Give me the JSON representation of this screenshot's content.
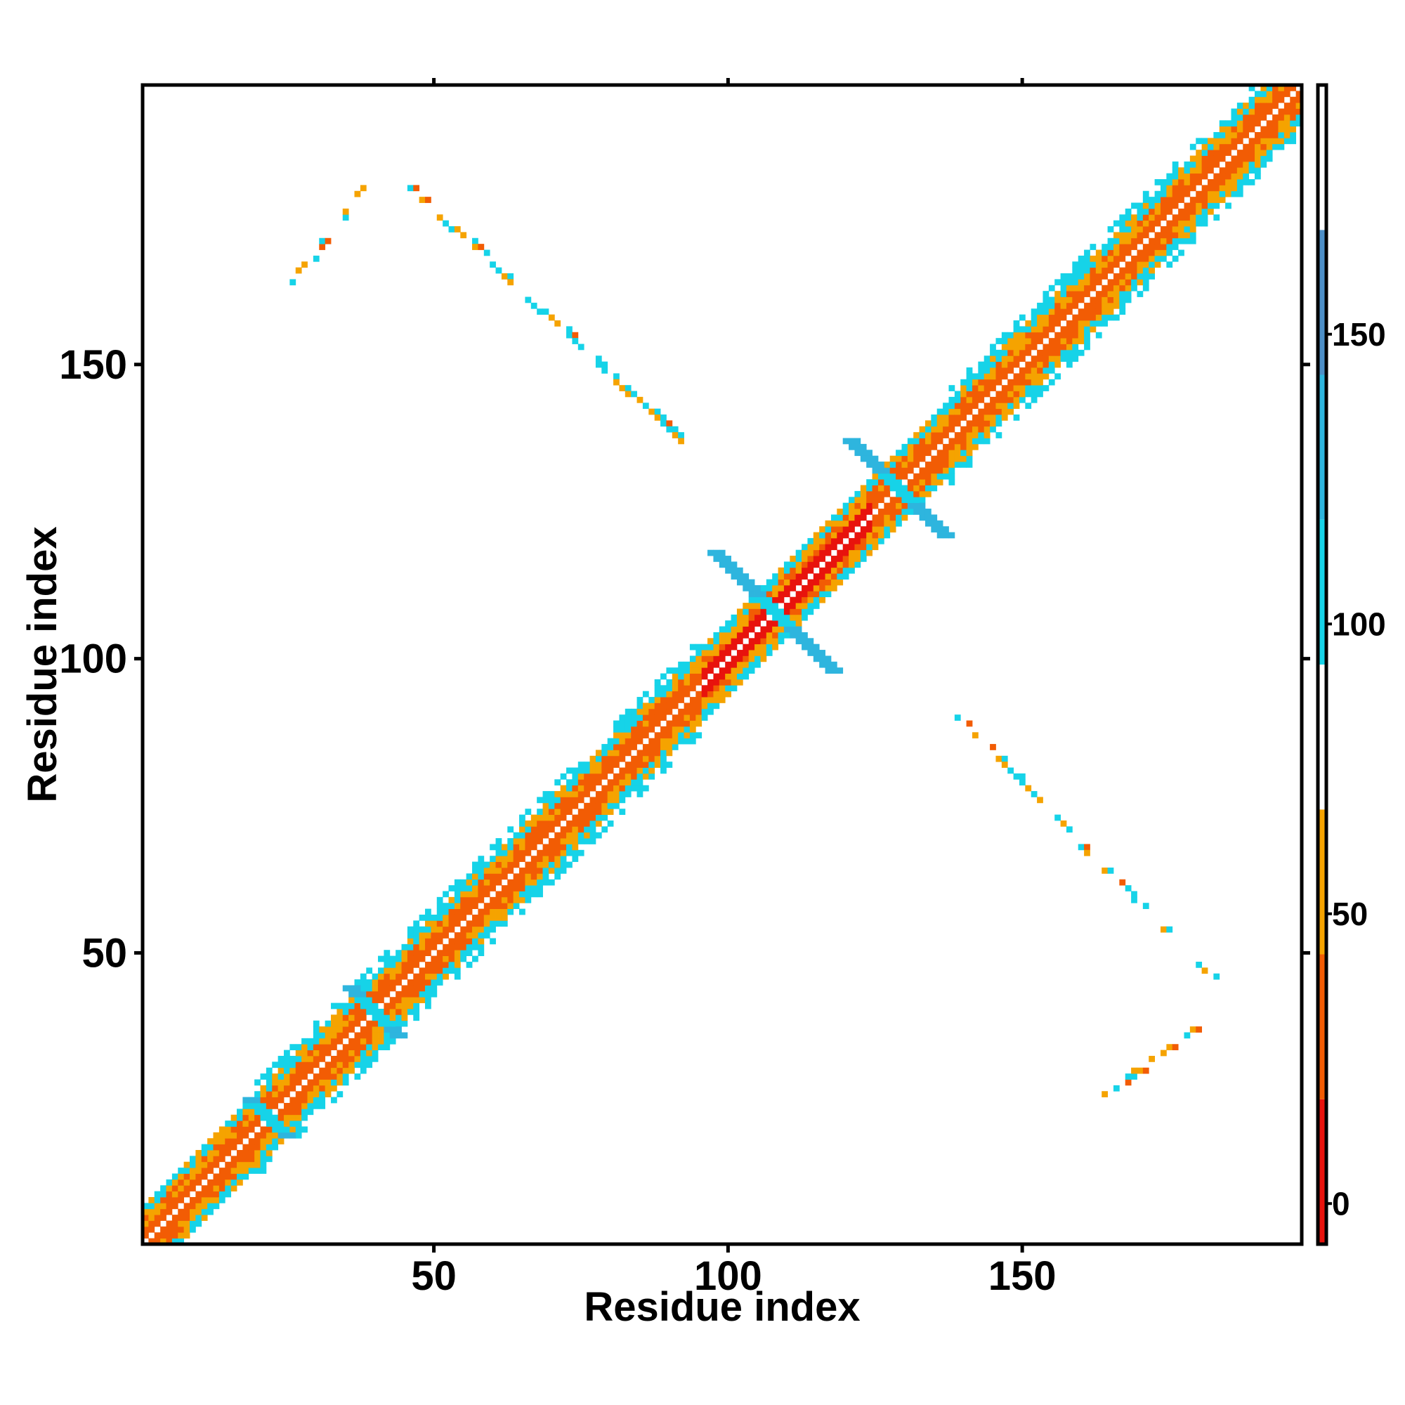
{
  "chart_data": {
    "type": "heatmap",
    "xlabel": "Residue index",
    "ylabel": "Residue index",
    "xlim": [
      1,
      197
    ],
    "ylim": [
      1,
      197
    ],
    "x_ticks": [
      {
        "value": 50,
        "label": "50"
      },
      {
        "value": 100,
        "label": "100"
      },
      {
        "value": 150,
        "label": "150"
      }
    ],
    "y_ticks": [
      {
        "value": 50,
        "label": "50"
      },
      {
        "value": 100,
        "label": "100"
      },
      {
        "value": 150,
        "label": "150"
      }
    ],
    "colorbar": {
      "range": [
        -7,
        193
      ],
      "ticks": [
        {
          "value": 0,
          "label": "0"
        },
        {
          "value": 50,
          "label": "50"
        },
        {
          "value": 100,
          "label": "100"
        },
        {
          "value": 150,
          "label": "150"
        }
      ],
      "bands": [
        {
          "from": -7,
          "to": 18,
          "color": "#e8130d"
        },
        {
          "from": 18,
          "to": 43,
          "color": "#f25c04"
        },
        {
          "from": 43,
          "to": 68,
          "color": "#f5a300"
        },
        {
          "from": 68,
          "to": 93,
          "color": "#ffffff"
        },
        {
          "from": 93,
          "to": 118,
          "color": "#16d3e8"
        },
        {
          "from": 118,
          "to": 143,
          "color": "#2eb5de"
        },
        {
          "from": 143,
          "to": 168,
          "color": "#4d8fc7"
        },
        {
          "from": 168,
          "to": 193,
          "color": "#ffffff"
        }
      ]
    },
    "grid": false,
    "legend": "colorbar-right",
    "regions": [
      {
        "name": "diagonal band",
        "from": [
          1,
          1
        ],
        "to": [
          197,
          197
        ],
        "width": 9
      },
      {
        "name": "antiparallel cross",
        "center": [
          108,
          108
        ],
        "extent": [
          100,
          118
        ]
      },
      {
        "name": "antiparallel cross",
        "center": [
          129,
          129
        ],
        "extent": [
          121,
          137
        ]
      },
      {
        "name": "antiparallel cross",
        "center": [
          40,
          40
        ],
        "extent": [
          36,
          45
        ]
      },
      {
        "name": "antiparallel cross",
        "center": [
          22,
          22
        ],
        "extent": [
          19,
          26
        ]
      },
      {
        "name": "off-diagonal antiparallel contacts",
        "from": [
          46,
          180
        ],
        "to": [
          92,
          137
        ]
      },
      {
        "name": "off-diagonal contacts",
        "from": [
          25,
          163
        ],
        "to": [
          38,
          180
        ]
      },
      {
        "name": "off-diagonal antiparallel contacts",
        "from": [
          137,
          92
        ],
        "to": [
          182,
          46
        ]
      },
      {
        "name": "off-diagonal contacts",
        "from": [
          163,
          25
        ],
        "to": [
          180,
          38
        ]
      }
    ]
  }
}
